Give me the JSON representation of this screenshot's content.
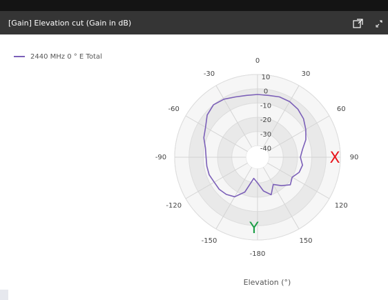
{
  "chart_data": {
    "type": "polar",
    "title": "[Gain] Elevation cut (Gain in dB)",
    "axis_label": "Elevation (°)",
    "x": [
      -180,
      -170,
      -160,
      -150,
      -140,
      -130,
      -120,
      -110,
      -100,
      -90,
      -80,
      -70,
      -60,
      -50,
      -40,
      -30,
      -20,
      -10,
      0,
      10,
      20,
      30,
      40,
      50,
      60,
      70,
      80,
      90,
      100,
      110,
      120,
      130,
      140,
      150,
      160,
      170
    ],
    "series": [
      {
        "name": "2440 MHz 0 ° E Total",
        "color": "#7b5fb8",
        "values": [
          -30,
          -33,
          -22,
          -16,
          -14,
          -13,
          -13,
          -12,
          -12,
          -12,
          -11,
          -8,
          -6,
          -2,
          0,
          -1,
          -3,
          -4,
          -4,
          -4,
          -3,
          -3,
          -4,
          -6,
          -9,
          -12,
          -16,
          -18,
          -16,
          -17,
          -20,
          -18,
          -22,
          -26,
          -20,
          -24
        ]
      }
    ],
    "rlim": [
      -48,
      10
    ],
    "rticks": [
      -40,
      -30,
      -20,
      -10,
      0,
      10
    ],
    "thetaticks": [
      -180,
      -150,
      -120,
      -90,
      -60,
      -30,
      0,
      30,
      60,
      90,
      120,
      150
    ],
    "annotations": [
      {
        "text": "X",
        "color": "#e8141b"
      },
      {
        "text": "Y",
        "color": "#1a9e45"
      }
    ]
  }
}
